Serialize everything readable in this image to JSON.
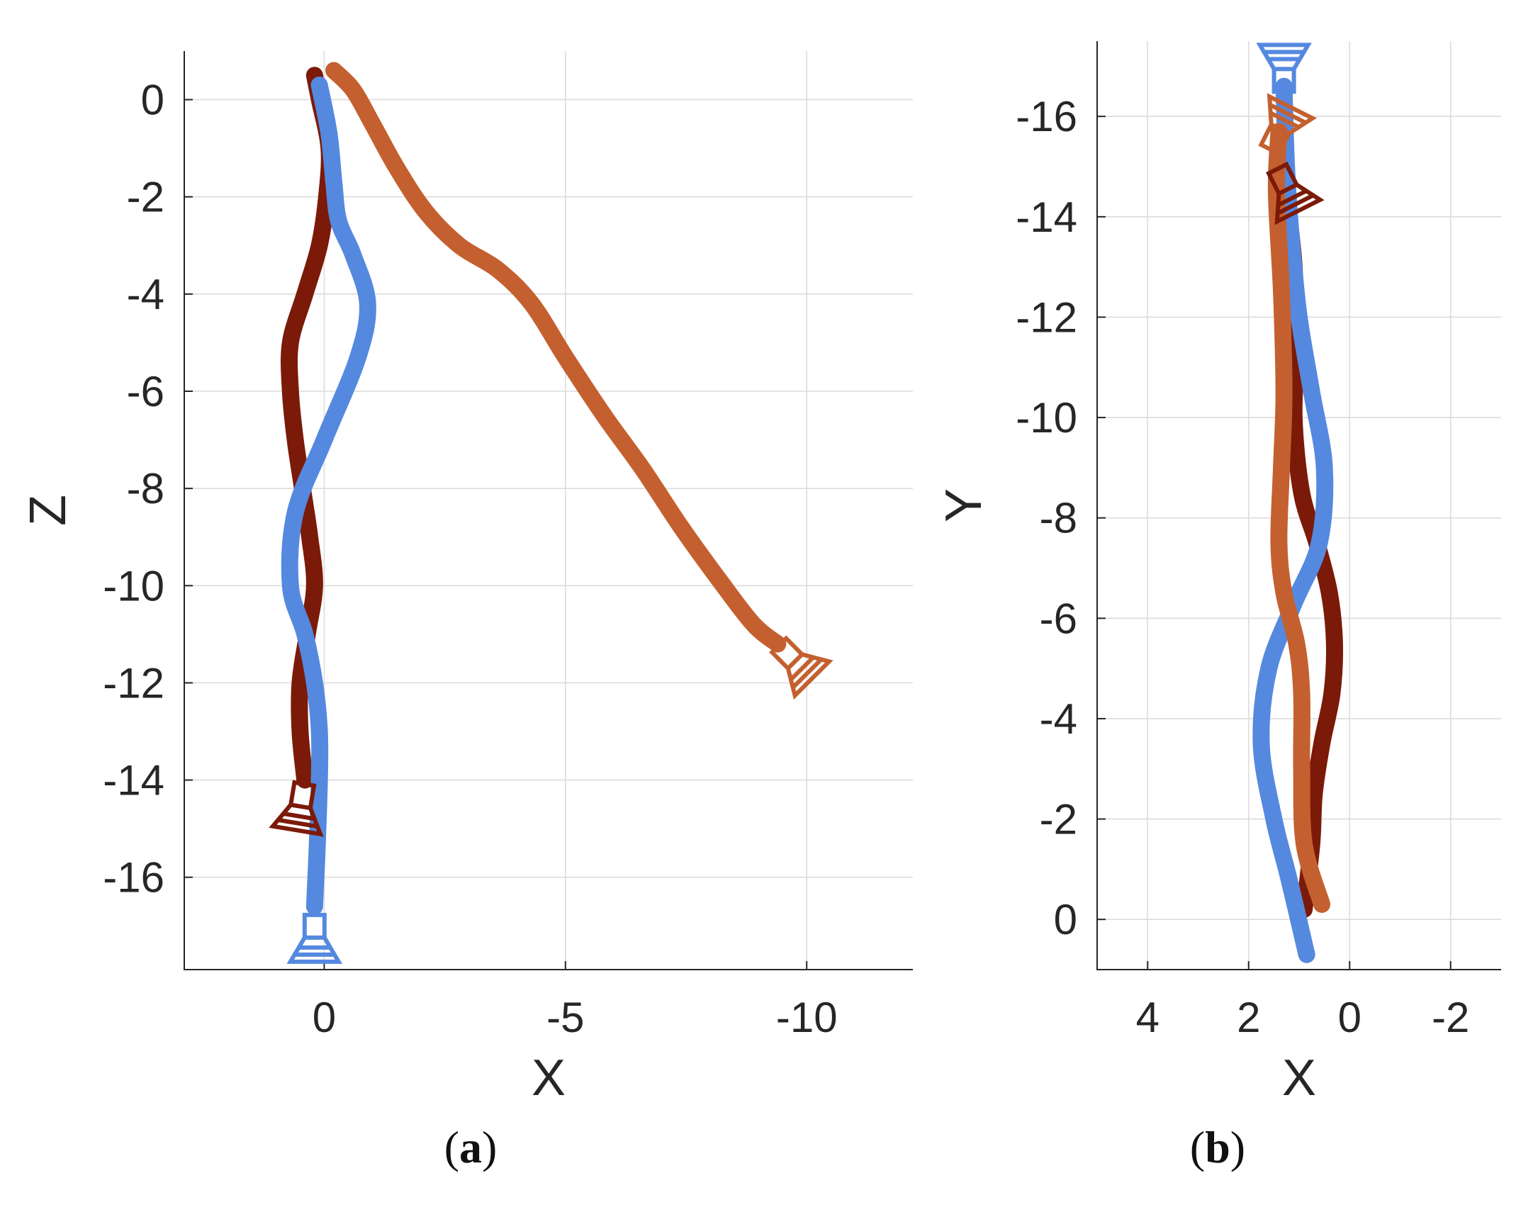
{
  "colors": {
    "series_dark_red": "#7B1A08",
    "series_blue": "#5589E0",
    "series_orange": "#C4602F",
    "axis": "#262626",
    "grid": "#DCDCDC"
  },
  "chart_data": [
    {
      "type": "line",
      "panel_label": "(a)",
      "panel_letter": "a",
      "xlabel": "X",
      "ylabel": "Z",
      "xlim": [
        2.9,
        -12.2
      ],
      "ylim": [
        -17.9,
        1.0
      ],
      "x_reversed": true,
      "grid": true,
      "x_ticks": [
        0,
        -5,
        -10
      ],
      "x_tick_labels": [
        "0",
        "-5",
        "-10"
      ],
      "y_ticks": [
        0,
        -2,
        -4,
        -6,
        -8,
        -10,
        -12,
        -14,
        -16
      ],
      "y_tick_labels": [
        "0",
        "-2",
        "-4",
        "-6",
        "-8",
        "-10",
        "-12",
        "-14",
        "-16"
      ],
      "series": [
        {
          "name": "dark-red-trajectory",
          "color": "#7B1A08",
          "x": [
            0.2,
            0.1,
            -0.1,
            -0.05,
            0.1,
            0.4,
            0.7,
            0.7,
            0.6,
            0.45,
            0.3,
            0.2,
            0.35,
            0.5,
            0.5,
            0.4
          ],
          "y": [
            0.5,
            0.0,
            -1.0,
            -2.0,
            -3.0,
            -4.0,
            -5.0,
            -6.0,
            -7.0,
            -8.0,
            -9.0,
            -10.0,
            -11.0,
            -12.0,
            -13.0,
            -14.0
          ]
        },
        {
          "name": "blue-trajectory",
          "color": "#5589E0",
          "x": [
            0.1,
            -0.1,
            -0.2,
            -0.3,
            -0.6,
            -0.9,
            -0.7,
            0.0,
            0.6,
            0.7,
            0.4,
            0.2,
            0.1,
            0.1,
            0.15,
            0.2
          ],
          "y": [
            0.3,
            -0.7,
            -1.7,
            -2.5,
            -3.2,
            -4.2,
            -5.3,
            -7.0,
            -8.5,
            -10.0,
            -11.0,
            -12.0,
            -13.0,
            -14.0,
            -15.5,
            -16.6
          ]
        },
        {
          "name": "orange-trajectory",
          "color": "#C4602F",
          "x": [
            -0.2,
            -0.6,
            -1.0,
            -1.5,
            -2.1,
            -2.8,
            -3.6,
            -4.3,
            -5.0,
            -5.8,
            -6.6,
            -7.4,
            -8.2,
            -8.9,
            -9.4
          ],
          "y": [
            0.6,
            0.2,
            -0.5,
            -1.4,
            -2.3,
            -3.0,
            -3.5,
            -4.2,
            -5.3,
            -6.5,
            -7.6,
            -8.8,
            -9.9,
            -10.8,
            -11.2
          ]
        }
      ],
      "camera_markers": [
        {
          "series": "blue-trajectory",
          "x": 0.2,
          "y": -17.3
        },
        {
          "series": "dark-red-trajectory",
          "x": 0.5,
          "y": -14.6
        },
        {
          "series": "orange-trajectory",
          "x": -9.8,
          "y": -11.6
        }
      ]
    },
    {
      "type": "line",
      "panel_label": "(b)",
      "panel_letter": "b",
      "xlabel": "X",
      "ylabel": "Y",
      "xlim": [
        5.0,
        -3.0
      ],
      "ylim": [
        1.0,
        -17.5
      ],
      "x_reversed": true,
      "y_reversed": true,
      "grid": true,
      "x_ticks": [
        4,
        2,
        0,
        -2
      ],
      "x_tick_labels": [
        "4",
        "2",
        "0",
        "-2"
      ],
      "y_ticks": [
        0,
        -2,
        -4,
        -6,
        -8,
        -10,
        -12,
        -14,
        -16
      ],
      "y_tick_labels": [
        "0",
        "-2",
        "-4",
        "-6",
        "-8",
        "-10",
        "-12",
        "-14",
        "-16"
      ],
      "series": [
        {
          "name": "dark-red-trajectory",
          "color": "#7B1A08",
          "x": [
            0.9,
            0.75,
            0.7,
            0.55,
            0.35,
            0.3,
            0.4,
            0.65,
            0.95,
            1.1,
            1.05,
            1.1,
            1.2,
            1.25
          ],
          "y": [
            -0.2,
            -1.5,
            -2.5,
            -3.5,
            -4.5,
            -5.5,
            -6.5,
            -7.5,
            -8.5,
            -10.0,
            -11.5,
            -13.0,
            -14.0,
            -14.6
          ]
        },
        {
          "name": "blue-trajectory",
          "color": "#5589E0",
          "x": [
            0.85,
            1.2,
            1.5,
            1.75,
            1.6,
            1.1,
            0.6,
            0.5,
            0.75,
            1.0,
            1.15,
            1.25,
            1.3
          ],
          "y": [
            0.7,
            -0.8,
            -2.0,
            -3.5,
            -5.0,
            -6.3,
            -7.5,
            -9.0,
            -10.5,
            -12.0,
            -13.5,
            -15.0,
            -16.6
          ]
        },
        {
          "name": "orange-trajectory",
          "color": "#C4602F",
          "x": [
            0.55,
            0.9,
            0.95,
            0.95,
            1.05,
            1.3,
            1.4,
            1.35,
            1.3,
            1.35,
            1.45,
            1.4
          ],
          "y": [
            -0.3,
            -1.5,
            -3.0,
            -4.5,
            -5.5,
            -6.5,
            -7.5,
            -9.0,
            -10.5,
            -12.5,
            -14.5,
            -15.7
          ]
        }
      ],
      "camera_markers": [
        {
          "series": "blue-trajectory",
          "x": 1.3,
          "y": -17.0
        },
        {
          "series": "orange-trajectory",
          "x": 1.35,
          "y": -15.8
        },
        {
          "series": "dark-red-trajectory",
          "x": 1.2,
          "y": -14.5
        }
      ]
    }
  ]
}
